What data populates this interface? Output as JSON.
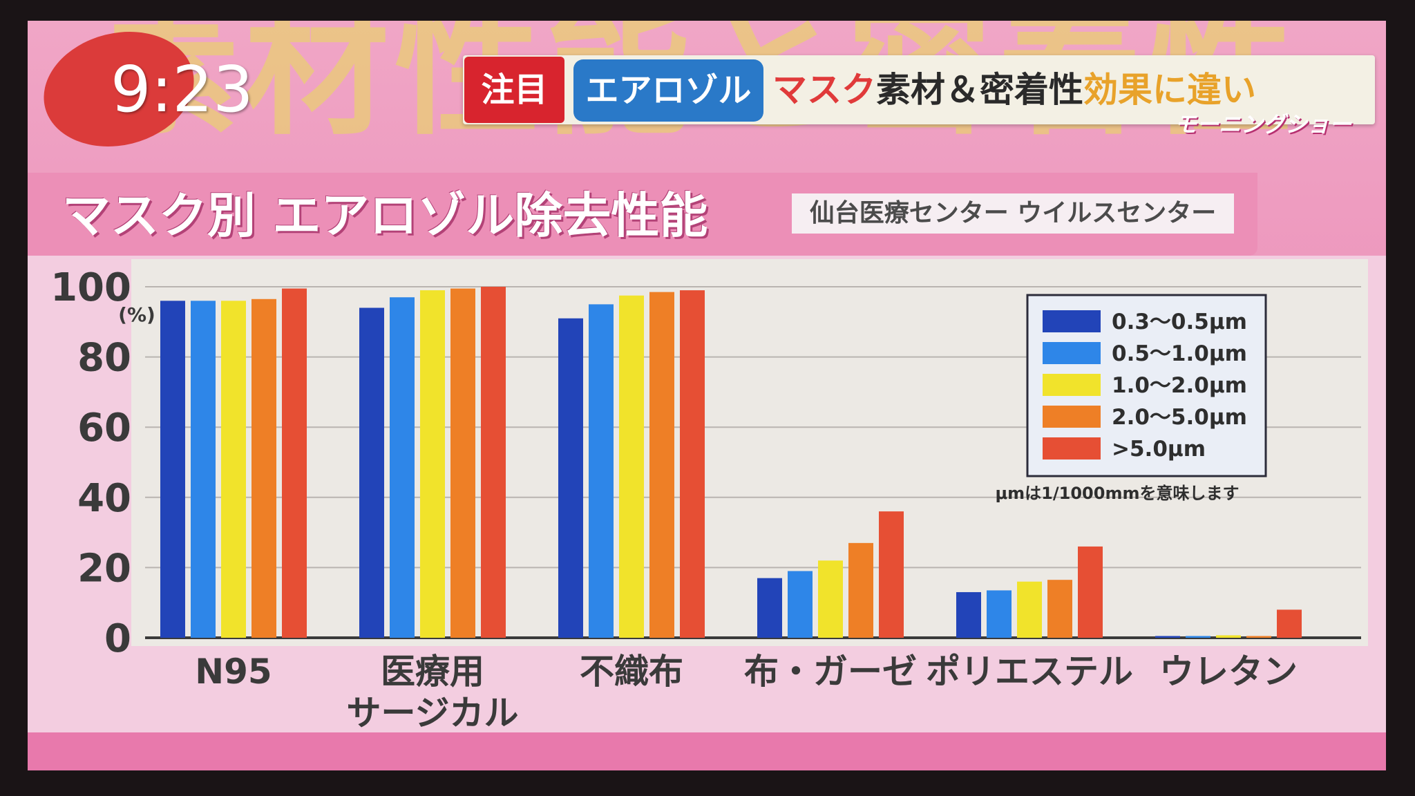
{
  "overlay": {
    "clock": "9:23",
    "background_headline": "素材性能と密着性",
    "ticker": {
      "tag_red": "注目",
      "tag_blue": "エアロゾル",
      "text_1": "マスク",
      "text_2": "素材＆密着性",
      "text_3": "効果に違い"
    },
    "show_logo": "モーニングショー"
  },
  "panel": {
    "title": "マスク別 エアロゾル除去性能",
    "source": "仙台医療センター ウイルスセンター"
  },
  "chart_data": {
    "type": "bar",
    "title": "マスク別 エアロゾル除去性能",
    "subtitle": "仙台医療センター ウイルスセンター",
    "ylabel": "(%)",
    "ylim": [
      0,
      100
    ],
    "yticks": [
      "0",
      "20",
      "40",
      "60",
      "80",
      "100"
    ],
    "grid": true,
    "legend_position": "top-right",
    "categories": [
      "N95",
      "医療用\nサージカル",
      "不織布",
      "布・ガーゼ",
      "ポリエステル",
      "ウレタン"
    ],
    "series": [
      {
        "name": "0.3〜0.5μm",
        "color": "#2244b8",
        "values": [
          96,
          94,
          91,
          17,
          13,
          0.5
        ]
      },
      {
        "name": "0.5〜1.0μm",
        "color": "#2e86e8",
        "values": [
          96,
          97,
          95,
          19,
          13.5,
          0.5
        ]
      },
      {
        "name": "1.0〜2.0μm",
        "color": "#f1e32b",
        "values": [
          96,
          99,
          97.5,
          22,
          16,
          0.7
        ]
      },
      {
        "name": "2.0〜5.0μm",
        "color": "#ee7f26",
        "values": [
          96.5,
          99.5,
          98.5,
          27,
          16.5,
          0.5
        ]
      },
      {
        "name": ">5.0μm",
        "color": "#e64f34",
        "values": [
          99.5,
          100,
          99,
          36,
          26,
          8
        ]
      }
    ],
    "note": "μmは1/1000mmを意味します"
  }
}
